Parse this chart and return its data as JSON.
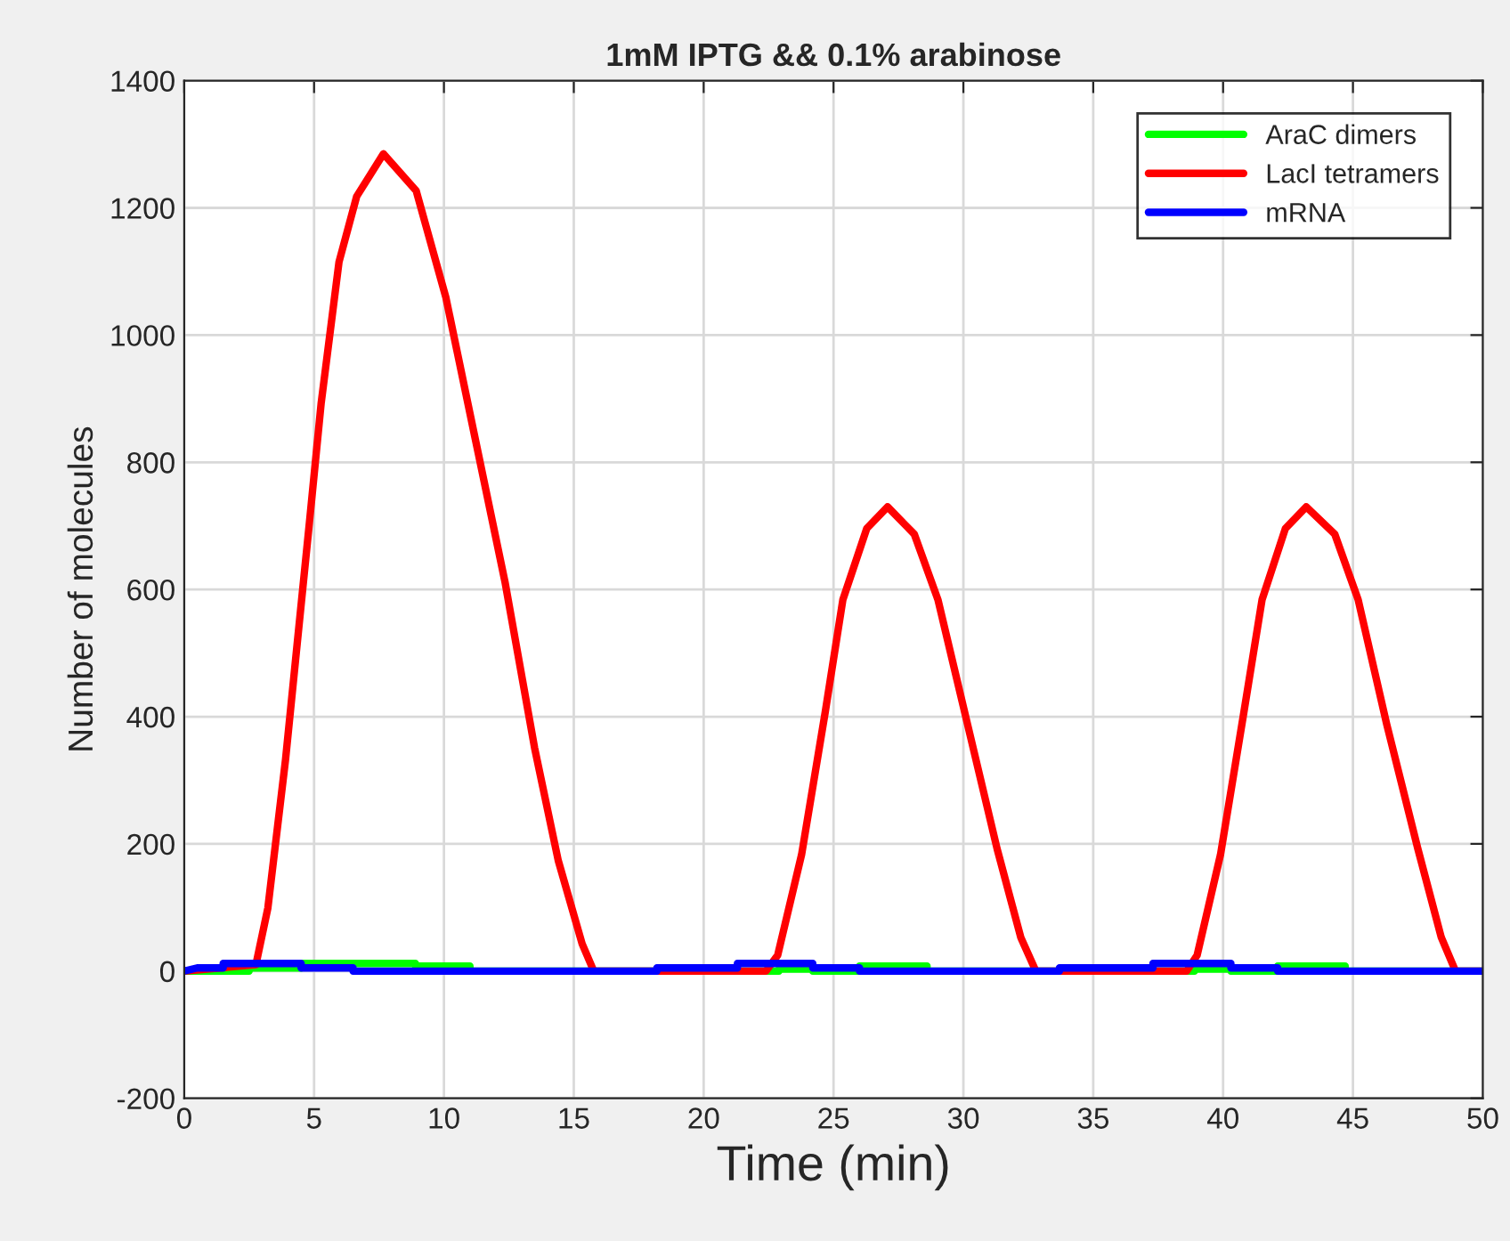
{
  "chart_data": {
    "type": "line",
    "title": "1mM IPTG && 0.1% arabinose",
    "xlabel": "Time (min)",
    "ylabel": "Number of molecules",
    "xlim": [
      0,
      50
    ],
    "xticks": [
      0,
      5,
      10,
      15,
      20,
      25,
      30,
      35,
      40,
      45,
      50
    ],
    "ylim": [
      -200,
      1400
    ],
    "yticks": [
      -200,
      0,
      200,
      400,
      600,
      800,
      1000,
      1200,
      1400
    ],
    "grid": true,
    "legend": "top right",
    "line_style": "solid",
    "marker": "none",
    "series": [
      {
        "name": "AraC dimers",
        "color": "#00ff00",
        "x": [
          0,
          2.5,
          2.5,
          4.5,
          4.5,
          8.9,
          8.9,
          11,
          11,
          22.9,
          22.9,
          24.2,
          24.2,
          26,
          26,
          28.6,
          28.6,
          38.9,
          38.9,
          40.3,
          40.3,
          42.1,
          42.1,
          44.7,
          44.7,
          50
        ],
        "values": [
          0,
          0,
          5,
          5,
          12,
          12,
          8,
          8,
          0,
          0,
          3,
          3,
          0,
          0,
          8,
          8,
          0,
          0,
          3,
          3,
          0,
          0,
          8,
          8,
          0,
          0
        ]
      },
      {
        "name": "LacI tetramers",
        "color": "#ff0000",
        "x": [
          0,
          2.76,
          3.22,
          3.9,
          4.36,
          4.82,
          5.27,
          5.96,
          6.64,
          7.67,
          8.93,
          10.07,
          11.21,
          12.35,
          13.49,
          14.4,
          15.32,
          15.77,
          22.4,
          22.85,
          23.77,
          24.68,
          25.36,
          26.28,
          27.08,
          28.11,
          29.02,
          30.16,
          31.3,
          32.21,
          32.79,
          38.6,
          39.0,
          39.9,
          40.8,
          41.5,
          42.4,
          43.2,
          44.3,
          45.2,
          46.3,
          47.5,
          48.4,
          48.95,
          50
        ],
        "values": [
          0,
          10,
          99,
          332,
          519,
          705,
          892,
          1115,
          1218,
          1285,
          1227,
          1060,
          836,
          612,
          351,
          174,
          43,
          0,
          0,
          25,
          183,
          407,
          584,
          696,
          730,
          687,
          584,
          388,
          192,
          53,
          0,
          0,
          25,
          183,
          407,
          584,
          696,
          730,
          687,
          584,
          388,
          192,
          53,
          0,
          0
        ]
      },
      {
        "name": "mRNA",
        "color": "#0000ff",
        "x": [
          0,
          0.5,
          1.5,
          1.5,
          4.5,
          4.5,
          6.5,
          6.5,
          18.2,
          18.2,
          21.3,
          21.3,
          24.2,
          24.2,
          26,
          26,
          33.7,
          33.7,
          37.3,
          37.3,
          40.3,
          40.3,
          42.1,
          42.1,
          50
        ],
        "values": [
          0,
          5,
          5,
          12,
          12,
          5,
          5,
          0,
          0,
          5,
          5,
          12,
          12,
          5,
          5,
          0,
          0,
          5,
          5,
          12,
          12,
          5,
          5,
          0,
          0
        ]
      }
    ]
  }
}
